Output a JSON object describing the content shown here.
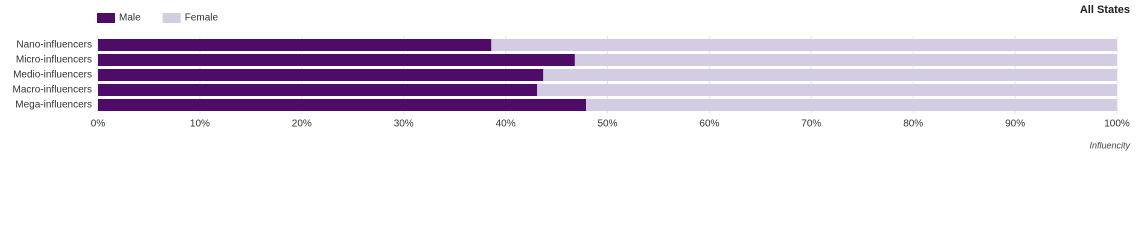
{
  "chart_data": {
    "type": "stacked_bar_horizontal",
    "title": "All States",
    "brand": "Influencity",
    "categories": [
      "Nano-influencers",
      "Micro-influencers",
      "Medio-influencers",
      "Macro-influencers",
      "Mega-influencers"
    ],
    "series": [
      {
        "name": "Male",
        "color": "#4f0b68",
        "values": [
          38.6,
          46.8,
          43.7,
          43.1,
          47.9
        ]
      },
      {
        "name": "Female",
        "color": "#d3cce3",
        "values": [
          61.4,
          53.2,
          56.3,
          56.9,
          52.1
        ]
      }
    ],
    "xlim": [
      0,
      100
    ],
    "xticks": [
      {
        "value": 0,
        "label": "0%"
      },
      {
        "value": 10,
        "label": "10%"
      },
      {
        "value": 20,
        "label": "20%"
      },
      {
        "value": 30,
        "label": "30%"
      },
      {
        "value": 40,
        "label": "40%"
      },
      {
        "value": 50,
        "label": "50%"
      },
      {
        "value": 60,
        "label": "60%"
      },
      {
        "value": 70,
        "label": "70%"
      },
      {
        "value": 80,
        "label": "80%"
      },
      {
        "value": 90,
        "label": "90%"
      },
      {
        "value": 100,
        "label": "100%"
      }
    ],
    "grid": true,
    "legend": "top-left"
  }
}
